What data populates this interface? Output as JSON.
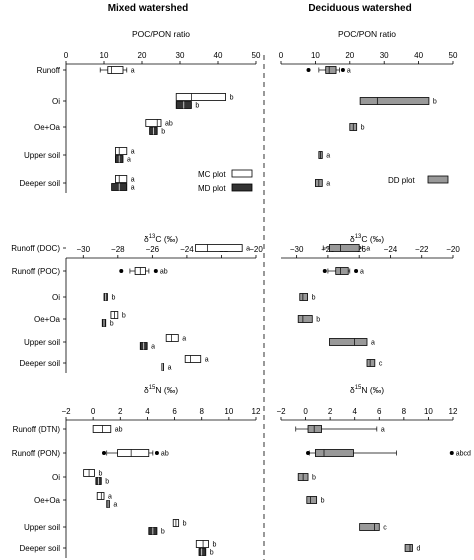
{
  "col_titles": [
    "Mixed watershed",
    "Deciduous watershed"
  ],
  "legend": [
    {
      "label": "MC plot",
      "fill": "#ffffff"
    },
    {
      "label": "MD plot",
      "fill": "#333333"
    },
    {
      "label": "DD plot",
      "fill": "#999999"
    }
  ],
  "colors": {
    "mc": "#ffffff",
    "md": "#333333",
    "dd": "#999999",
    "stroke": "#000000"
  },
  "chart_data": [
    {
      "type": "box",
      "title": "POC/PON ratio",
      "xlim": [
        0,
        50
      ],
      "ticks": [
        0,
        10,
        20,
        30,
        40,
        50
      ],
      "categories": [
        "Runoff",
        "Oi",
        "Oe+Oa",
        "Upper soil",
        "Deeper soil"
      ],
      "mixed": [
        {
          "cat": "Runoff",
          "series": "MC",
          "q1": 11,
          "med": 12,
          "q3": 15,
          "wlo": 9,
          "whi": 16,
          "letter": "a"
        },
        {
          "cat": "Oi",
          "series": "MC",
          "q1": 29,
          "med": 33,
          "q3": 42,
          "letter": "b"
        },
        {
          "cat": "Oi",
          "series": "MD",
          "q1": 29,
          "med": 31,
          "q3": 33,
          "letter": "b"
        },
        {
          "cat": "Oe+Oa",
          "series": "MC",
          "q1": 21,
          "med": 24,
          "q3": 25,
          "letter": "ab"
        },
        {
          "cat": "Oe+Oa",
          "series": "MD",
          "q1": 22,
          "med": 23,
          "q3": 24,
          "letter": "b"
        },
        {
          "cat": "Upper soil",
          "series": "MC",
          "q1": 13,
          "med": 14,
          "q3": 16,
          "letter": "a"
        },
        {
          "cat": "Upper soil",
          "series": "MD",
          "q1": 13,
          "med": 14,
          "q3": 15,
          "letter": "a"
        },
        {
          "cat": "Deeper soil",
          "series": "MC",
          "q1": 13,
          "med": 14,
          "q3": 16,
          "letter": "a"
        },
        {
          "cat": "Deeper soil",
          "series": "MD",
          "q1": 12,
          "med": 14,
          "q3": 16,
          "letter": "a"
        }
      ],
      "deciduous": [
        {
          "cat": "Runoff",
          "series": "DD",
          "q1": 13,
          "med": 14,
          "q3": 16,
          "wlo": 11,
          "whi": 17,
          "outliers": [
            8,
            18
          ],
          "letter": "a"
        },
        {
          "cat": "Oi",
          "series": "DD",
          "q1": 23,
          "med": 28,
          "q3": 43,
          "letter": "b"
        },
        {
          "cat": "Oe+Oa",
          "series": "DD",
          "q1": 20,
          "med": 21,
          "q3": 22,
          "letter": "b"
        },
        {
          "cat": "Upper soil",
          "series": "DD",
          "q1": 11,
          "med": 11.5,
          "q3": 12,
          "letter": "a"
        },
        {
          "cat": "Deeper soil",
          "series": "DD",
          "q1": 10,
          "med": 11,
          "q3": 12,
          "letter": "a"
        }
      ]
    },
    {
      "type": "box",
      "title": "δ13C (‰)",
      "title_parts": [
        "δ",
        "13",
        "C (‰)"
      ],
      "xlim": [
        -31,
        -20
      ],
      "ticks": [
        -30,
        -28,
        -26,
        -24,
        -22,
        -20
      ],
      "categories": [
        "Runoff (DOC)",
        "Runoff (POC)",
        "Oi",
        "Oe+Oa",
        "Upper soil",
        "Deeper soil"
      ],
      "mixed": [
        {
          "cat": "Runoff (DOC)",
          "series": "MC",
          "q1": -23.5,
          "med": -22.8,
          "q3": -20.8,
          "letter": "a"
        },
        {
          "cat": "Runoff (POC)",
          "series": "MC",
          "q1": -27.0,
          "med": -26.7,
          "q3": -26.4,
          "wlo": -27.3,
          "whi": -26.2,
          "outliers": [
            -27.8,
            -25.8
          ],
          "letter": "ab"
        },
        {
          "cat": "Oi",
          "series": "MD",
          "q1": -28.8,
          "med": -28.7,
          "q3": -28.6,
          "letter": "b"
        },
        {
          "cat": "Oe+Oa",
          "series": "MC",
          "q1": -28.4,
          "med": -28.2,
          "q3": -28.0,
          "letter": "b"
        },
        {
          "cat": "Oe+Oa",
          "series": "MD",
          "q1": -28.9,
          "med": -28.8,
          "q3": -28.7,
          "letter": "b"
        },
        {
          "cat": "Upper soil",
          "series": "MC",
          "q1": -25.2,
          "med": -24.9,
          "q3": -24.5,
          "letter": "a"
        },
        {
          "cat": "Upper soil",
          "series": "MD",
          "q1": -26.7,
          "med": -26.5,
          "q3": -26.3,
          "letter": "a"
        },
        {
          "cat": "Deeper soil",
          "series": "MC",
          "q1": -24.1,
          "med": -23.8,
          "q3": -23.2,
          "letter": "a"
        },
        {
          "cat": "Deeper soil",
          "series": "MD",
          "q1": -25.45,
          "med": -25.4,
          "q3": -25.35,
          "letter": "a"
        }
      ],
      "deciduous": [
        {
          "cat": "Runoff (DOC)",
          "series": "DD",
          "q1": -27.9,
          "med": -27.2,
          "q3": -26.0,
          "wlo": -28.3,
          "whi": -25.8,
          "letter": "a"
        },
        {
          "cat": "Runoff (POC)",
          "series": "DD",
          "q1": -27.5,
          "med": -27.2,
          "q3": -26.7,
          "wlo": -28.0,
          "whi": -26.6,
          "outliers": [
            -28.2,
            -26.2
          ],
          "letter": "a"
        },
        {
          "cat": "Oi",
          "series": "DD",
          "q1": -29.8,
          "med": -29.6,
          "q3": -29.3,
          "letter": "b"
        },
        {
          "cat": "Oe+Oa",
          "series": "DD",
          "q1": -29.9,
          "med": -29.6,
          "q3": -29.0,
          "letter": "b"
        },
        {
          "cat": "Upper soil",
          "series": "DD",
          "q1": -27.9,
          "med": -26.3,
          "q3": -25.5,
          "letter": "a"
        },
        {
          "cat": "Deeper soil",
          "series": "DD",
          "q1": -25.5,
          "med": -25.3,
          "q3": -25.0,
          "letter": "c"
        }
      ]
    },
    {
      "type": "box",
      "title": "δ15N (‰)",
      "title_parts": [
        "δ",
        "15",
        "N (‰)"
      ],
      "xlim": [
        -2,
        12
      ],
      "ticks": [
        -2,
        0,
        2,
        4,
        6,
        8,
        10,
        12
      ],
      "categories": [
        "Runoff (DTN)",
        "Runoff (PON)",
        "Oi",
        "Oe+Oa",
        "Upper soil",
        "Deeper soil"
      ],
      "mixed": [
        {
          "cat": "Runoff (DTN)",
          "series": "MC",
          "q1": 0.0,
          "med": 0.7,
          "q3": 1.3,
          "letter": "ab"
        },
        {
          "cat": "Runoff (PON)",
          "series": "MC",
          "q1": 1.8,
          "med": 2.8,
          "q3": 4.1,
          "wlo": 1.0,
          "whi": 4.4,
          "outliers": [
            0.8,
            4.7
          ],
          "letter": "ab"
        },
        {
          "cat": "Oi",
          "series": "MC",
          "q1": -0.7,
          "med": -0.3,
          "q3": 0.1,
          "letter": "b"
        },
        {
          "cat": "Oi",
          "series": "MD",
          "q1": 0.2,
          "med": 0.4,
          "q3": 0.6,
          "letter": "b"
        },
        {
          "cat": "Oe+Oa",
          "series": "MC",
          "q1": 0.3,
          "med": 0.6,
          "q3": 0.8,
          "letter": "a"
        },
        {
          "cat": "Oe+Oa",
          "series": "MD",
          "q1": 1.0,
          "med": 1.1,
          "q3": 1.2,
          "letter": "a"
        },
        {
          "cat": "Upper soil",
          "series": "MC",
          "q1": 5.9,
          "med": 6.1,
          "q3": 6.3,
          "letter": "b"
        },
        {
          "cat": "Upper soil",
          "series": "MD",
          "q1": 4.1,
          "med": 4.4,
          "q3": 4.7,
          "letter": "b"
        },
        {
          "cat": "Deeper soil",
          "series": "MC",
          "q1": 7.6,
          "med": 8.1,
          "q3": 8.5,
          "letter": "b"
        },
        {
          "cat": "Deeper soil",
          "series": "MD",
          "q1": 7.8,
          "med": 8.0,
          "q3": 8.3,
          "letter": "b"
        }
      ],
      "deciduous": [
        {
          "cat": "Runoff (DTN)",
          "series": "DD",
          "q1": 0.2,
          "med": 0.7,
          "q3": 1.3,
          "wlo": -0.8,
          "whi": 5.8,
          "letter": "a"
        },
        {
          "cat": "Runoff (PON)",
          "series": "DD",
          "q1": 0.8,
          "med": 1.5,
          "q3": 3.9,
          "wlo": 0.3,
          "whi": 7.4,
          "outliers": [
            0.2,
            11.9
          ],
          "letter": "abcd"
        },
        {
          "cat": "Oi",
          "series": "DD",
          "q1": -0.6,
          "med": -0.2,
          "q3": 0.2,
          "letter": "b"
        },
        {
          "cat": "Oe+Oa",
          "series": "DD",
          "q1": 0.1,
          "med": 0.4,
          "q3": 0.9,
          "letter": "b"
        },
        {
          "cat": "Upper soil",
          "series": "DD",
          "q1": 4.4,
          "med": 5.6,
          "q3": 6.0,
          "letter": "c"
        },
        {
          "cat": "Deeper soil",
          "series": "DD",
          "q1": 8.1,
          "med": 8.5,
          "q3": 8.7,
          "letter": "d"
        }
      ]
    }
  ]
}
